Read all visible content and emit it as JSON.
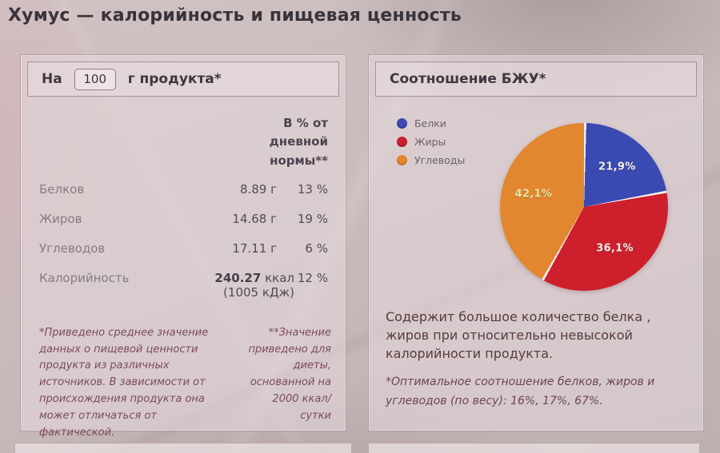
{
  "page": {
    "title": "Хумус — калорийность и пищевая ценность"
  },
  "nutrition_panel": {
    "prefix": "На",
    "amount_value": "100",
    "suffix": "г продукта*",
    "percent_header": "В % от дневной нормы**",
    "rows": [
      {
        "label": "Белков",
        "value": "8.89 г",
        "percent": "13 %"
      },
      {
        "label": "Жиров",
        "value": "14.68 г",
        "percent": "19 %"
      },
      {
        "label": "Углеводов",
        "value": "17.11 г",
        "percent": "6 %"
      },
      {
        "label": "Калорийность",
        "value_bold": "240.27",
        "value_unit": "ккал",
        "value_alt": "(1005 кДж)",
        "percent": "12 %"
      }
    ],
    "footnote_left": "*Приведено среднее значение данных о пищевой ценности продукта из различных источников. В зависимости от происхождения продукта она может отличаться от фактической.",
    "footnote_right": "**Значение приведено для диеты, основанной на 2000 ккал/сутки"
  },
  "ratio_panel": {
    "title": "Соотношение БЖУ*",
    "description": "Содержит большое количество белка , жиров при относительно невысокой калорийности продукта.",
    "footnote": "*Оптимальное соотношение белков, жиров и углеводов (по весу): 16%, 17%, 67%."
  },
  "chart_data": {
    "type": "pie",
    "title": "Соотношение БЖУ*",
    "categories": [
      "Белки",
      "Жиры",
      "Углеводы"
    ],
    "values": [
      21.9,
      36.1,
      42.1
    ],
    "labels": [
      "21,9%",
      "36,1%",
      "42,1%"
    ],
    "colors": [
      "#3a4ab2",
      "#ce1f2d",
      "#e2872f"
    ],
    "label_colors": [
      "#f2efe9",
      "#f2efe9",
      "#ebe6a4"
    ],
    "separator_color": "rgba(250,246,242,0.85)",
    "legend_position": "top-left",
    "start_angle_deg": 0,
    "direction": "clockwise"
  }
}
